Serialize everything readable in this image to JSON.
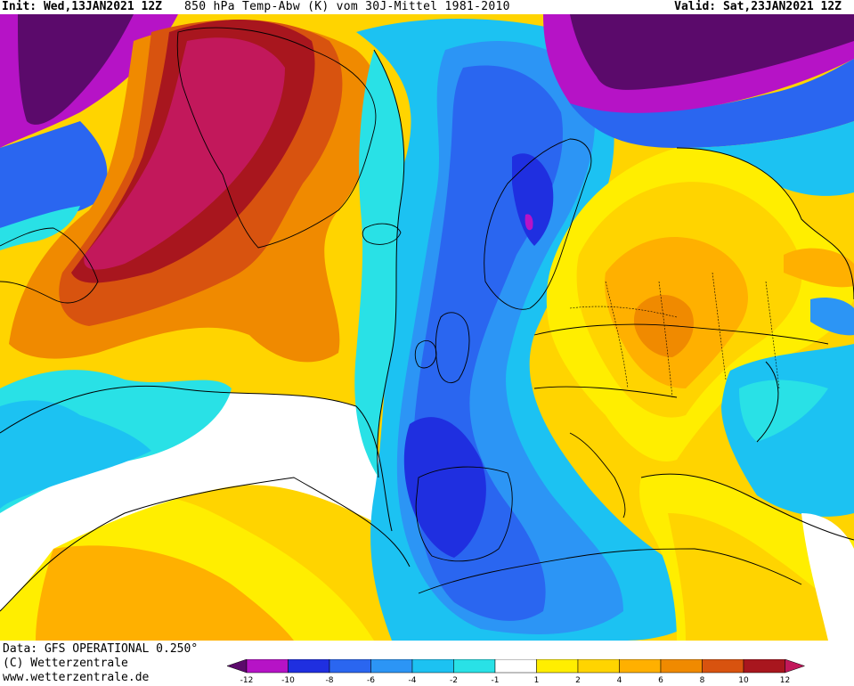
{
  "header": {
    "init": "Init: Wed,13JAN2021 12Z",
    "title": "850 hPa Temp-Abw (K) vom 30J-Mittel 1981-2010",
    "valid": "Valid: Sat,23JAN2021 12Z"
  },
  "footer": {
    "data_source": "Data: GFS OPERATIONAL 0.250°",
    "copyright": "(C) Wetterzentrale",
    "website": "www.wetterzentrale.de"
  },
  "legend": {
    "ticks": [
      "-12",
      "-10",
      "-8",
      "-6",
      "-4",
      "-2",
      "-1",
      "1",
      "2",
      "4",
      "6",
      "8",
      "10",
      "12"
    ],
    "colors": [
      "#5b0a6b",
      "#b613c6",
      "#1f2fe0",
      "#2a66f0",
      "#2c95f5",
      "#1cc2f2",
      "#29e1e6",
      "#ffffff",
      "#ffee00",
      "#ffd400",
      "#ffb000",
      "#f08a00",
      "#d8530f",
      "#a8161e",
      "#c2185b"
    ]
  },
  "colors": {
    "very_cold": "#5b0a6b",
    "cold": "#b613c6",
    "blue": "#2a66f0",
    "mid_blue": "#2c95f5",
    "cyan": "#1cc2f2",
    "light_cyan": "#29e1e6",
    "neutral": "#ffffff",
    "yellow": "#ffee00",
    "gold": "#ffd400",
    "orange": "#ffb000",
    "dark_orange": "#f08a00",
    "red_orange": "#d8530f",
    "dark_red": "#a8161e",
    "magenta": "#c2185b"
  }
}
